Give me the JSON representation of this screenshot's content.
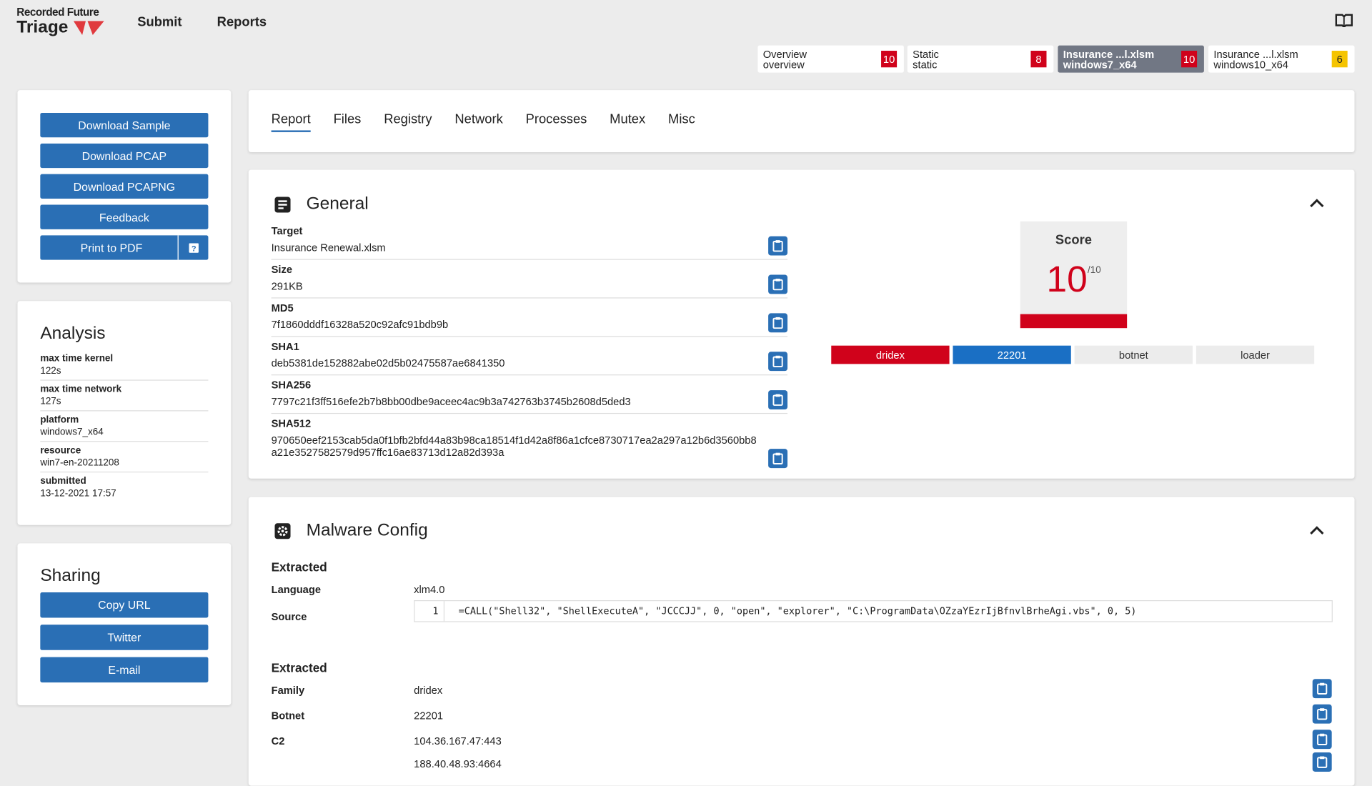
{
  "header": {
    "brand_top": "Recorded Future",
    "brand": "Triage",
    "nav": [
      "Submit",
      "Reports"
    ]
  },
  "tabs": [
    {
      "title": "Overview",
      "subtitle": "overview",
      "score": 10
    },
    {
      "title": "Static",
      "subtitle": "static",
      "score": 8
    },
    {
      "title": "Insurance ...l.xlsm",
      "subtitle": "windows7_x64",
      "score": 10
    },
    {
      "title": "Insurance ...l.xlsm",
      "subtitle": "windows10_x64",
      "score": 6
    }
  ],
  "active_tab": 2,
  "actions": [
    "Download Sample",
    "Download PCAP",
    "Download PCAPNG",
    "Feedback",
    "Print to PDF"
  ],
  "analysis": {
    "title": "Analysis",
    "rows": [
      {
        "label": "max time kernel",
        "value": "122s"
      },
      {
        "label": "max time network",
        "value": "127s"
      },
      {
        "label": "platform",
        "value": "windows7_x64"
      },
      {
        "label": "resource",
        "value": "win7-en-20211208"
      },
      {
        "label": "submitted",
        "value": "13-12-2021 17:57"
      }
    ]
  },
  "sharing": {
    "title": "Sharing",
    "buttons": [
      "Copy URL",
      "Twitter",
      "E-mail"
    ]
  },
  "report_nav": {
    "items": [
      "Report",
      "Files",
      "Registry",
      "Network",
      "Processes",
      "Mutex",
      "Misc"
    ],
    "active": 0
  },
  "general": {
    "title": "General",
    "fields": [
      {
        "label": "Target",
        "value": "Insurance Renewal.xlsm"
      },
      {
        "label": "Size",
        "value": "291KB"
      },
      {
        "label": "MD5",
        "value": "7f1860dddf16328a520c92afc91bdb9b"
      },
      {
        "label": "SHA1",
        "value": "deb5381de152882abe02d5b02475587ae6841350"
      },
      {
        "label": "SHA256",
        "value": "7797c21f3ff516efe2b7b8bb00dbe9aceec4ac9b3a742763b3745b2608d5ded3"
      },
      {
        "label": "SHA512",
        "value": "970650eef2153cab5da0f1bfb2bfd44a83b98ca18514f1d42a8f86a1cfce8730717ea2a297a12b6d3560bb8a21e3527582579d957ffc16ae83713d12a82d393a"
      }
    ],
    "score": {
      "label": "Score",
      "value": 10,
      "max": "/10"
    },
    "tags": [
      {
        "label": "dridex",
        "color": "#d0021b"
      },
      {
        "label": "22201",
        "color": "#1a6fc4"
      },
      {
        "label": "botnet",
        "color": "#ececec"
      },
      {
        "label": "loader",
        "color": "#ececec"
      }
    ]
  },
  "malware_config": {
    "title": "Malware Config",
    "sections": [
      {
        "heading": "Extracted",
        "rows": [
          {
            "label": "Language",
            "value": "xlm4.0"
          },
          {
            "label": "Source",
            "line": 1,
            "code": "=CALL(\"Shell32\", \"ShellExecuteA\", \"JCCCJJ\", 0, \"open\", \"explorer\", \"C:\\ProgramData\\OZzaYEzrIjBfnvlBrheAgi.vbs\", 0, 5)"
          }
        ]
      },
      {
        "heading": "Extracted",
        "rows": [
          {
            "label": "Family",
            "values": [
              "dridex"
            ]
          },
          {
            "label": "Botnet",
            "values": [
              "22201"
            ]
          },
          {
            "label": "C2",
            "values": [
              "104.36.167.47:443",
              "188.40.48.93:4664"
            ]
          }
        ]
      }
    ]
  }
}
